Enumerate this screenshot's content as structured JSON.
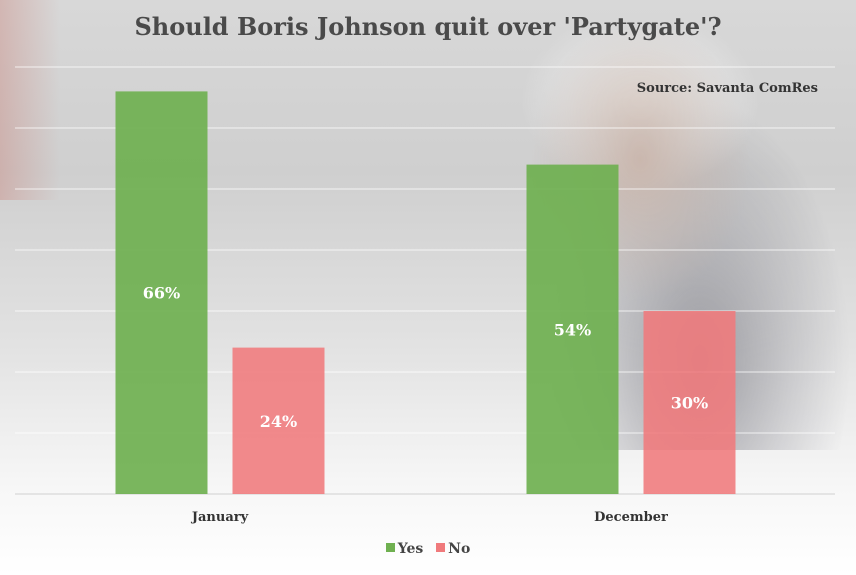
{
  "chart_data": {
    "type": "bar",
    "title": "Should Boris Johnson quit over 'Partygate'?",
    "source": "Source: Savanta ComRes",
    "categories": [
      "January",
      "December"
    ],
    "series": [
      {
        "name": "Yes",
        "values": [
          66,
          54
        ],
        "labels": [
          "66%",
          "54%"
        ],
        "color": "#6fb050"
      },
      {
        "name": "No",
        "values": [
          24,
          30
        ],
        "labels": [
          "24%",
          "30%"
        ],
        "color": "#f07a7c"
      }
    ],
    "ylim": [
      0,
      70
    ],
    "grid": true,
    "legend_position": "bottom"
  }
}
